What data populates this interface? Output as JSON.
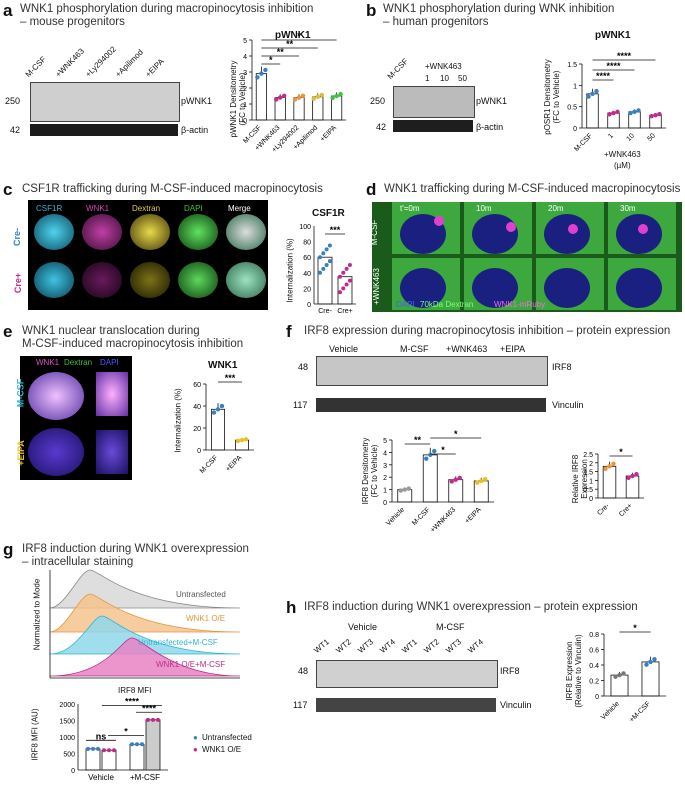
{
  "panels": {
    "a": {
      "label": "a",
      "title": "WNK1 phosphorylation during macropinocytosis inhibition\n– mouse progenitors",
      "blot": {
        "lanes": [
          "M-CSF",
          "+WNK463",
          "+Ly294002",
          "+Apilimod",
          "+EIPA"
        ],
        "mw": [
          "250",
          "42"
        ],
        "rows": [
          "pWNK1",
          "β-actin"
        ]
      },
      "chart_title": "pWNK1",
      "ylabel": "pWNK1 Densitometry\n(FC to Vehicle)",
      "sig": [
        "*",
        "**",
        "**",
        "*"
      ]
    },
    "b": {
      "label": "b",
      "title": "WNK1 phosphorylation during WNK inhibition\n– human progenitors",
      "blot": {
        "lanes": [
          "M-CSF",
          "1",
          "10",
          "50"
        ],
        "group": "+WNK463",
        "mw": [
          "250",
          "42"
        ],
        "rows": [
          "pWNK1",
          "β-actin"
        ]
      },
      "chart_title": "pWNK1",
      "ylabel": "pOSR1 Densitometry\n(FC to Vehicle)",
      "sig": [
        "****",
        "****",
        "****"
      ],
      "xnote": "+WNK463",
      "xunit": "(µM)"
    },
    "c": {
      "label": "c",
      "title": "CSF1R trafficking during M-CSF-induced macropinocytosis",
      "channels": [
        "CSF1R",
        "WNK1",
        "Dextran",
        "DAPI",
        "Merge"
      ],
      "rows": [
        "Cre-",
        "Cre+"
      ],
      "chart_title": "CSF1R",
      "ylabel": "Internalization (%)",
      "sig": [
        "***"
      ]
    },
    "d": {
      "label": "d",
      "title": "WNK1 trafficking during M-CSF-induced macropinocytosis",
      "times": [
        "t'=0m",
        "10m",
        "20m",
        "30m"
      ],
      "rows": [
        "M-CSF",
        "+WNK463"
      ],
      "legend": [
        "DAPI",
        "70kDa Dextran",
        "WNK1-mRuby"
      ]
    },
    "e": {
      "label": "e",
      "title": "WNK1 nuclear translocation during\nM-CSF-induced macropinocytosis inhibition",
      "channels": [
        "WNK1",
        "Dextran",
        "DAPI"
      ],
      "rows": [
        "M-CSF",
        "+EIPA"
      ],
      "chart_title": "WNK1",
      "ylabel": "Internalization (%)",
      "sig": [
        "***"
      ]
    },
    "f": {
      "label": "f",
      "title": "IRF8 expression during macropinocytosis inhibition – protein expression",
      "blot": {
        "groups": [
          "Vehicle",
          "M-CSF",
          "+WNK463",
          "+EIPA"
        ],
        "mw": [
          "48",
          "117"
        ],
        "rows": [
          "IRF8",
          "Vinculin"
        ]
      },
      "ylabel": "IRF8 Densitometry\n(FC to Vehicle)",
      "ylabel2": "Relative IRF8\nExpression",
      "sig": [
        "**",
        "*",
        "*"
      ],
      "sig2": [
        "*"
      ]
    },
    "g": {
      "label": "g",
      "title": "IRF8 induction during WNK1 overexpression\n– intracellular staining",
      "hist_ylabel": "Normalized to Mode",
      "hist_xlabel": "IRF8 MFI",
      "hist_legend": [
        "Untransfected",
        "WNK1 O/E",
        "Untransfected+M-CSF",
        "WNK1 O/E+M-CSF"
      ],
      "bar_ylabel": "IRF8 MFI (AU)",
      "bar_x": [
        "Vehicle",
        "+M-CSF"
      ],
      "legend": [
        "Untransfected",
        "WNK1 O/E"
      ],
      "sig": [
        "ns",
        "*",
        "****",
        "****"
      ]
    },
    "h": {
      "label": "h",
      "title": "IRF8 induction during WNK1 overexpression – protein expression",
      "blot": {
        "groups": [
          "Vehicle",
          "M-CSF"
        ],
        "lanes": [
          "WT1",
          "WT2",
          "WT3",
          "WT4",
          "WT1",
          "WT2",
          "WT3",
          "WT4"
        ],
        "mw": [
          "48",
          "117"
        ],
        "rows": [
          "IRF8",
          "Vinculin"
        ]
      },
      "ylabel": "IRF8 Expression\n(Relative to Vinculin)",
      "sig": [
        "*"
      ]
    }
  },
  "colors": {
    "blue": "#3a7fc1",
    "magenta": "#c02a8a",
    "orange": "#e8943a",
    "yellow": "#d9c03a",
    "cyan": "#2fb6d6",
    "green": "#3ec33e"
  },
  "chart_data": [
    {
      "id": "a",
      "type": "bar",
      "title": "pWNK1",
      "categories": [
        "M-CSF",
        "+WNK463",
        "+Ly294002",
        "+Apilimod",
        "+EIPA"
      ],
      "values": [
        2.9,
        1.4,
        1.4,
        1.45,
        1.5
      ],
      "ylim": [
        0,
        5
      ],
      "yticks": [
        0,
        1,
        2,
        3,
        4,
        5
      ],
      "ylabel": "pWNK1 Densitometry (FC to Vehicle)"
    },
    {
      "id": "b",
      "type": "bar",
      "title": "pWNK1",
      "categories": [
        "M-CSF",
        "1",
        "10",
        "50"
      ],
      "values": [
        0.8,
        0.35,
        0.38,
        0.3
      ],
      "ylim": [
        0,
        1.5
      ],
      "yticks": [
        0.0,
        0.5,
        1.0,
        1.5
      ],
      "ylabel": "pOSR1 Densitometry (FC to Vehicle)"
    },
    {
      "id": "c",
      "type": "scatter",
      "title": "CSF1R",
      "categories": [
        "Cre-",
        "Cre+"
      ],
      "values": [
        60,
        35
      ],
      "ylim": [
        0,
        100
      ],
      "yticks": [
        0,
        20,
        40,
        60,
        80,
        100
      ],
      "ylabel": "Internalization (%)"
    },
    {
      "id": "e",
      "type": "bar",
      "title": "WNK1",
      "categories": [
        "M-CSF",
        "+EIPA"
      ],
      "values": [
        37,
        9
      ],
      "ylim": [
        0,
        60
      ],
      "yticks": [
        0,
        20,
        40,
        60
      ],
      "ylabel": "Internalization (%)"
    },
    {
      "id": "f1",
      "type": "bar",
      "categories": [
        "Vehicle",
        "M-CSF",
        "+WNK463",
        "+EIPA"
      ],
      "values": [
        1.0,
        3.8,
        1.8,
        1.7
      ],
      "ylim": [
        0,
        5
      ],
      "yticks": [
        0,
        1,
        2,
        3,
        4,
        5
      ],
      "ylabel": "IRF8 Densitometry (FC to Vehicle)"
    },
    {
      "id": "f2",
      "type": "bar",
      "categories": [
        "Cre-",
        "Cre+"
      ],
      "values": [
        1.8,
        1.25
      ],
      "ylim": [
        0,
        2.5
      ],
      "yticks": [
        0.0,
        0.5,
        1.0,
        1.5,
        2.0,
        2.5
      ],
      "ylabel": "Relative IRF8 Expression"
    },
    {
      "id": "g",
      "type": "bar",
      "categories": [
        "Vehicle",
        "+M-CSF"
      ],
      "series": [
        {
          "name": "Untransfected",
          "values": [
            640,
            780
          ]
        },
        {
          "name": "WNK1 O/E",
          "values": [
            600,
            1520
          ]
        }
      ],
      "ylim": [
        0,
        2000
      ],
      "yticks": [
        0,
        500,
        1000,
        1500,
        2000
      ],
      "ylabel": "IRF8 MFI (AU)"
    },
    {
      "id": "h",
      "type": "bar",
      "categories": [
        "Vehicle",
        "+M-CSF"
      ],
      "values": [
        0.27,
        0.44
      ],
      "ylim": [
        0,
        0.8
      ],
      "yticks": [
        0.0,
        0.2,
        0.4,
        0.6,
        0.8
      ],
      "ylabel": "IRF8 Expression (Relative to Vinculin)"
    }
  ]
}
